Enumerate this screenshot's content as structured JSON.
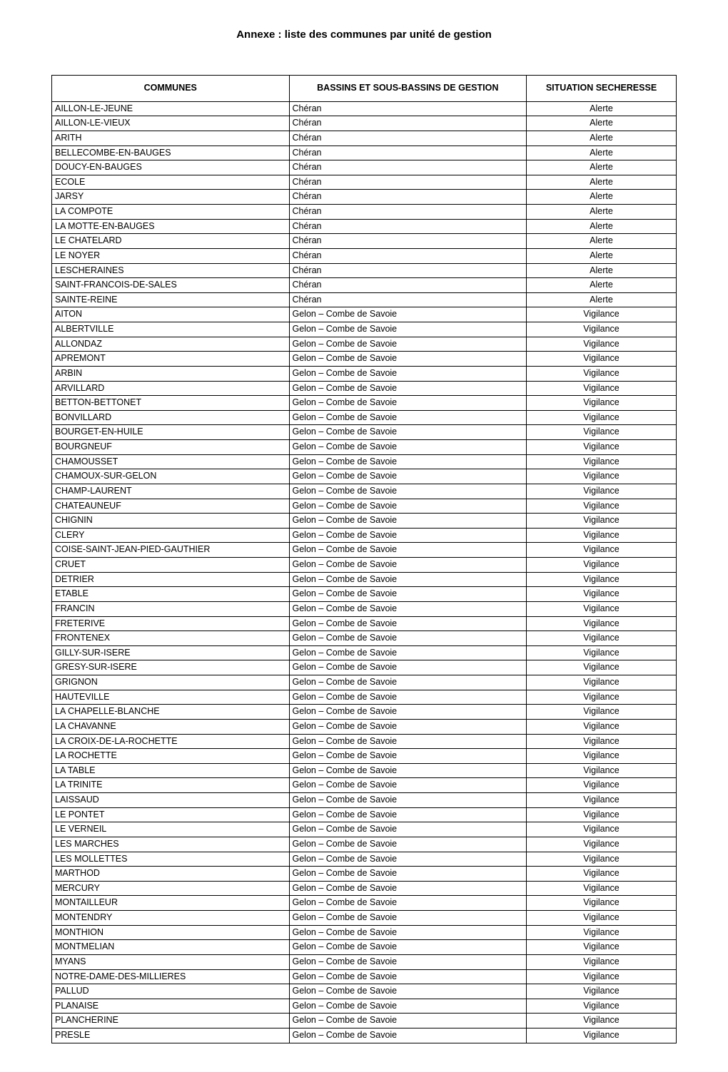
{
  "page": {
    "title": "Annexe : liste des communes par unité de gestion"
  },
  "table": {
    "headers": {
      "commune": "COMMUNES",
      "bassin": "BASSINS ET SOUS-BASSINS DE GESTION",
      "situation": "SITUATION SECHERESSE"
    },
    "rows": [
      {
        "commune": "AILLON-LE-JEUNE",
        "bassin": "Chéran",
        "situation": "Alerte"
      },
      {
        "commune": "AILLON-LE-VIEUX",
        "bassin": "Chéran",
        "situation": "Alerte"
      },
      {
        "commune": "ARITH",
        "bassin": "Chéran",
        "situation": "Alerte"
      },
      {
        "commune": "BELLECOMBE-EN-BAUGES",
        "bassin": "Chéran",
        "situation": "Alerte"
      },
      {
        "commune": "DOUCY-EN-BAUGES",
        "bassin": "Chéran",
        "situation": "Alerte"
      },
      {
        "commune": "ECOLE",
        "bassin": "Chéran",
        "situation": "Alerte"
      },
      {
        "commune": "JARSY",
        "bassin": "Chéran",
        "situation": "Alerte"
      },
      {
        "commune": "LA COMPOTE",
        "bassin": "Chéran",
        "situation": "Alerte"
      },
      {
        "commune": "LA MOTTE-EN-BAUGES",
        "bassin": "Chéran",
        "situation": "Alerte"
      },
      {
        "commune": "LE CHATELARD",
        "bassin": "Chéran",
        "situation": "Alerte"
      },
      {
        "commune": "LE NOYER",
        "bassin": "Chéran",
        "situation": "Alerte"
      },
      {
        "commune": "LESCHERAINES",
        "bassin": "Chéran",
        "situation": "Alerte"
      },
      {
        "commune": "SAINT-FRANCOIS-DE-SALES",
        "bassin": "Chéran",
        "situation": "Alerte"
      },
      {
        "commune": "SAINTE-REINE",
        "bassin": "Chéran",
        "situation": "Alerte"
      },
      {
        "commune": "AITON",
        "bassin": "Gelon – Combe de Savoie",
        "situation": "Vigilance"
      },
      {
        "commune": "ALBERTVILLE",
        "bassin": "Gelon – Combe de Savoie",
        "situation": "Vigilance"
      },
      {
        "commune": "ALLONDAZ",
        "bassin": "Gelon – Combe de Savoie",
        "situation": "Vigilance"
      },
      {
        "commune": "APREMONT",
        "bassin": "Gelon – Combe de Savoie",
        "situation": "Vigilance"
      },
      {
        "commune": "ARBIN",
        "bassin": "Gelon – Combe de Savoie",
        "situation": "Vigilance"
      },
      {
        "commune": "ARVILLARD",
        "bassin": "Gelon – Combe de Savoie",
        "situation": "Vigilance"
      },
      {
        "commune": "BETTON-BETTONET",
        "bassin": "Gelon – Combe de Savoie",
        "situation": "Vigilance"
      },
      {
        "commune": "BONVILLARD",
        "bassin": "Gelon – Combe de Savoie",
        "situation": "Vigilance"
      },
      {
        "commune": "BOURGET-EN-HUILE",
        "bassin": "Gelon – Combe de Savoie",
        "situation": "Vigilance"
      },
      {
        "commune": "BOURGNEUF",
        "bassin": "Gelon – Combe de Savoie",
        "situation": "Vigilance"
      },
      {
        "commune": "CHAMOUSSET",
        "bassin": "Gelon – Combe de Savoie",
        "situation": "Vigilance"
      },
      {
        "commune": "CHAMOUX-SUR-GELON",
        "bassin": "Gelon – Combe de Savoie",
        "situation": "Vigilance"
      },
      {
        "commune": "CHAMP-LAURENT",
        "bassin": "Gelon – Combe de Savoie",
        "situation": "Vigilance"
      },
      {
        "commune": "CHATEAUNEUF",
        "bassin": "Gelon – Combe de Savoie",
        "situation": "Vigilance"
      },
      {
        "commune": "CHIGNIN",
        "bassin": "Gelon – Combe de Savoie",
        "situation": "Vigilance"
      },
      {
        "commune": "CLERY",
        "bassin": "Gelon – Combe de Savoie",
        "situation": "Vigilance"
      },
      {
        "commune": "COISE-SAINT-JEAN-PIED-GAUTHIER",
        "bassin": "Gelon – Combe de Savoie",
        "situation": "Vigilance"
      },
      {
        "commune": "CRUET",
        "bassin": "Gelon – Combe de Savoie",
        "situation": "Vigilance"
      },
      {
        "commune": "DETRIER",
        "bassin": "Gelon – Combe de Savoie",
        "situation": "Vigilance"
      },
      {
        "commune": "ETABLE",
        "bassin": "Gelon – Combe de Savoie",
        "situation": "Vigilance"
      },
      {
        "commune": "FRANCIN",
        "bassin": "Gelon – Combe de Savoie",
        "situation": "Vigilance"
      },
      {
        "commune": "FRETERIVE",
        "bassin": "Gelon – Combe de Savoie",
        "situation": "Vigilance"
      },
      {
        "commune": "FRONTENEX",
        "bassin": "Gelon – Combe de Savoie",
        "situation": "Vigilance"
      },
      {
        "commune": "GILLY-SUR-ISERE",
        "bassin": "Gelon – Combe de Savoie",
        "situation": "Vigilance"
      },
      {
        "commune": "GRESY-SUR-ISERE",
        "bassin": "Gelon – Combe de Savoie",
        "situation": "Vigilance"
      },
      {
        "commune": "GRIGNON",
        "bassin": "Gelon – Combe de Savoie",
        "situation": "Vigilance"
      },
      {
        "commune": "HAUTEVILLE",
        "bassin": "Gelon – Combe de Savoie",
        "situation": "Vigilance"
      },
      {
        "commune": "LA CHAPELLE-BLANCHE",
        "bassin": "Gelon – Combe de Savoie",
        "situation": "Vigilance"
      },
      {
        "commune": "LA CHAVANNE",
        "bassin": "Gelon – Combe de Savoie",
        "situation": "Vigilance"
      },
      {
        "commune": "LA CROIX-DE-LA-ROCHETTE",
        "bassin": "Gelon – Combe de Savoie",
        "situation": "Vigilance"
      },
      {
        "commune": "LA ROCHETTE",
        "bassin": "Gelon – Combe de Savoie",
        "situation": "Vigilance"
      },
      {
        "commune": "LA TABLE",
        "bassin": "Gelon – Combe de Savoie",
        "situation": "Vigilance"
      },
      {
        "commune": "LA TRINITE",
        "bassin": "Gelon – Combe de Savoie",
        "situation": "Vigilance"
      },
      {
        "commune": "LAISSAUD",
        "bassin": "Gelon – Combe de Savoie",
        "situation": "Vigilance"
      },
      {
        "commune": "LE PONTET",
        "bassin": "Gelon – Combe de Savoie",
        "situation": "Vigilance"
      },
      {
        "commune": "LE VERNEIL",
        "bassin": "Gelon – Combe de Savoie",
        "situation": "Vigilance"
      },
      {
        "commune": "LES MARCHES",
        "bassin": "Gelon – Combe de Savoie",
        "situation": "Vigilance"
      },
      {
        "commune": "LES MOLLETTES",
        "bassin": "Gelon – Combe de Savoie",
        "situation": "Vigilance"
      },
      {
        "commune": "MARTHOD",
        "bassin": "Gelon – Combe de Savoie",
        "situation": "Vigilance"
      },
      {
        "commune": "MERCURY",
        "bassin": "Gelon – Combe de Savoie",
        "situation": "Vigilance"
      },
      {
        "commune": "MONTAILLEUR",
        "bassin": "Gelon – Combe de Savoie",
        "situation": "Vigilance"
      },
      {
        "commune": "MONTENDRY",
        "bassin": "Gelon – Combe de Savoie",
        "situation": "Vigilance"
      },
      {
        "commune": "MONTHION",
        "bassin": "Gelon – Combe de Savoie",
        "situation": "Vigilance"
      },
      {
        "commune": "MONTMELIAN",
        "bassin": "Gelon – Combe de Savoie",
        "situation": "Vigilance"
      },
      {
        "commune": "MYANS",
        "bassin": "Gelon – Combe de Savoie",
        "situation": "Vigilance"
      },
      {
        "commune": "NOTRE-DAME-DES-MILLIERES",
        "bassin": "Gelon – Combe de Savoie",
        "situation": "Vigilance"
      },
      {
        "commune": "PALLUD",
        "bassin": "Gelon – Combe de Savoie",
        "situation": "Vigilance"
      },
      {
        "commune": "PLANAISE",
        "bassin": "Gelon – Combe de Savoie",
        "situation": "Vigilance"
      },
      {
        "commune": "PLANCHERINE",
        "bassin": "Gelon – Combe de Savoie",
        "situation": "Vigilance"
      },
      {
        "commune": "PRESLE",
        "bassin": "Gelon – Combe de Savoie",
        "situation": "Vigilance"
      }
    ]
  }
}
